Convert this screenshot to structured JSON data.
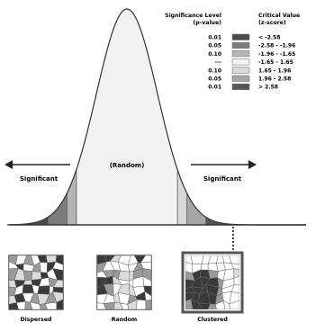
{
  "legend": {
    "p_header_line1": "Significance Level",
    "p_header_line2": "(p-value)",
    "z_header_line1": "Critical Value",
    "z_header_line2": "(z-score)",
    "rows": [
      {
        "p": "0.01",
        "z": "< -2.58",
        "color": "#4a4a4a"
      },
      {
        "p": "0.05",
        "z": "-2.58 - -1.96",
        "color": "#7d7d7d"
      },
      {
        "p": "0.10",
        "z": "-1.96 - -1.65",
        "color": "#b5b5b5"
      },
      {
        "p": "---",
        "z": "-1.65 - 1.65",
        "color": "#f2f2f2"
      },
      {
        "p": "0.10",
        "z": "1.65 - 1.96",
        "color": "#d9d9d9"
      },
      {
        "p": "0.05",
        "z": "1.96 - 2.58",
        "color": "#a6a6a6"
      },
      {
        "p": "0.01",
        "z": "> 2.58",
        "color": "#555555"
      }
    ]
  },
  "curve": {
    "center_label": "(Random)",
    "left_label": "Significant",
    "right_label": "Significant"
  },
  "maps": {
    "dispersed_label": "Dispersed",
    "random_label": "Random",
    "clustered_label": "Clustered"
  }
}
